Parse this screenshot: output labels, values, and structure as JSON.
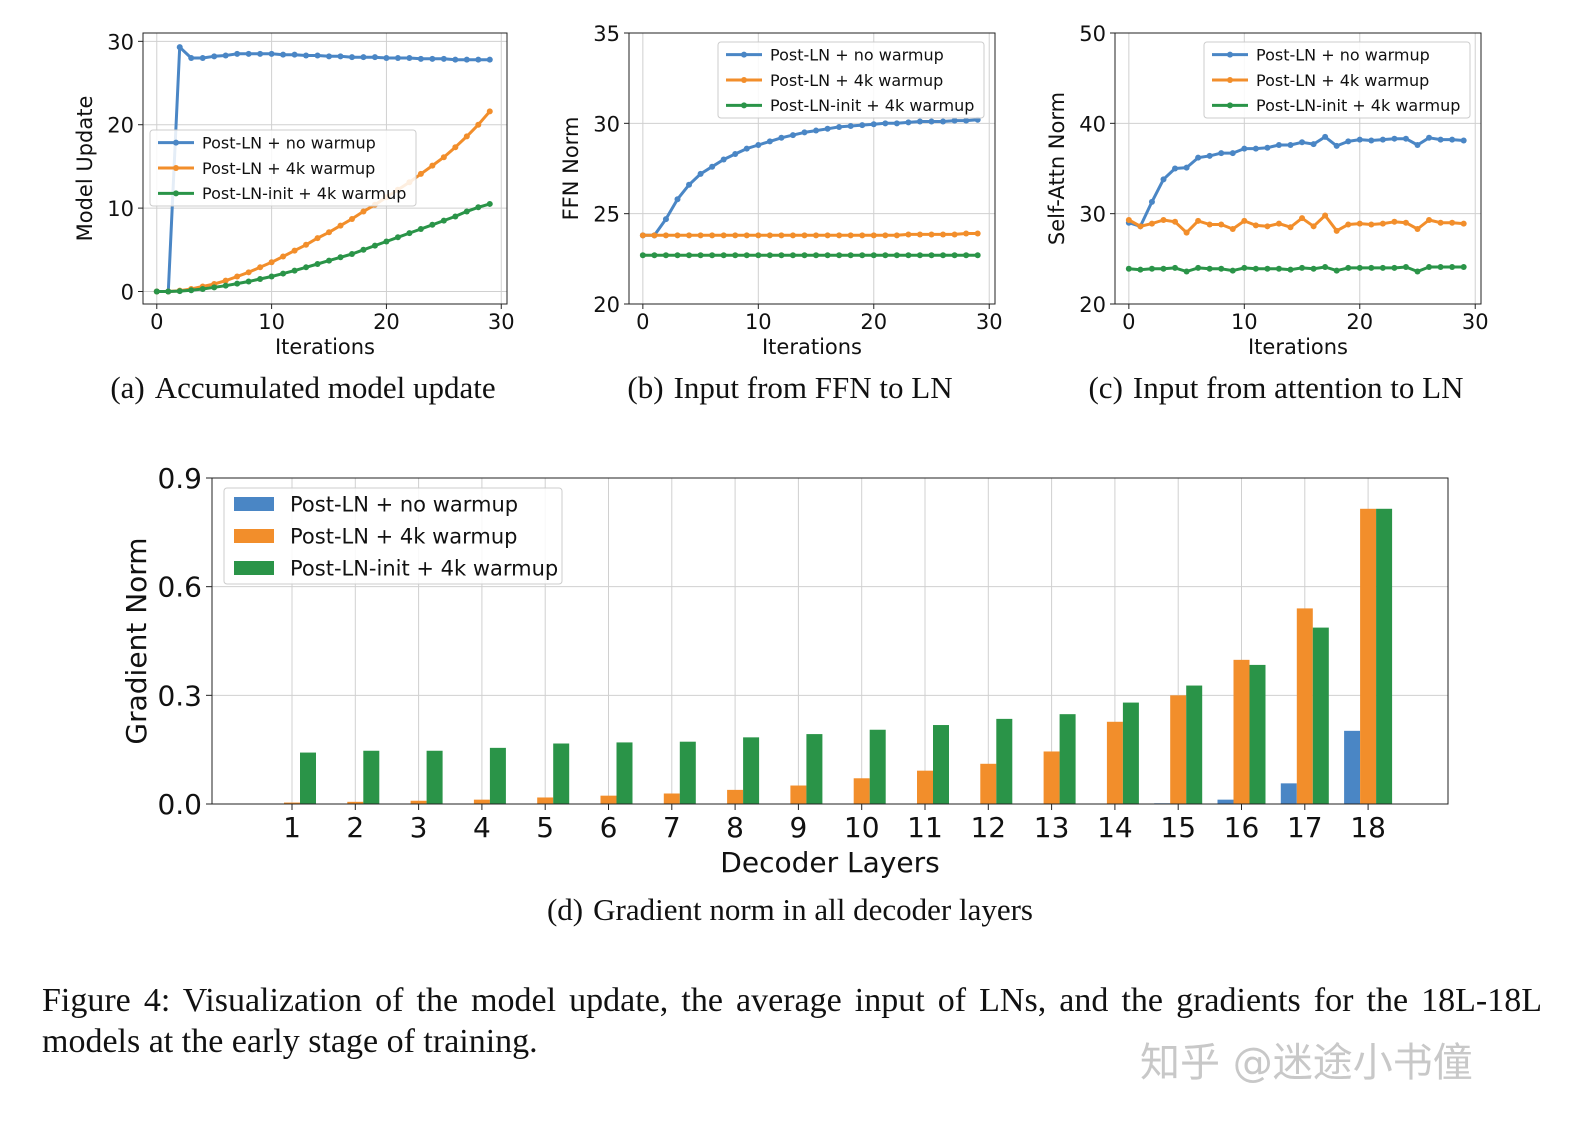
{
  "colors": {
    "blue": "#4a86c5",
    "orange": "#f28e2b",
    "green": "#2a9448",
    "grid": "#d0d0d0",
    "axis": "#222222"
  },
  "chart_data": [
    {
      "type": "line",
      "id": "a",
      "caption_tag": "(a)",
      "caption": "Accumulated model update",
      "xlabel": "Iterations",
      "ylabel": "Model Update",
      "xlim": [
        -1.2,
        30.5
      ],
      "ylim": [
        -1.5,
        31
      ],
      "xticks": [
        0,
        10,
        20,
        30
      ],
      "yticks": [
        0,
        10,
        20,
        30
      ],
      "legend_position": "center-left",
      "series": [
        {
          "name": "Post-LN + no warmup",
          "color": "blue",
          "values": [
            0,
            0,
            29.3,
            28,
            28,
            28.2,
            28.3,
            28.5,
            28.5,
            28.5,
            28.5,
            28.4,
            28.4,
            28.3,
            28.3,
            28.2,
            28.2,
            28.1,
            28.1,
            28.1,
            28,
            28,
            28,
            27.9,
            27.9,
            27.9,
            27.8,
            27.8,
            27.8,
            27.8
          ]
        },
        {
          "name": "Post-LN + 4k warmup",
          "color": "orange",
          "values": [
            0,
            0,
            0.1,
            0.3,
            0.6,
            0.9,
            1.3,
            1.8,
            2.3,
            2.9,
            3.5,
            4.2,
            4.9,
            5.6,
            6.4,
            7.1,
            7.9,
            8.7,
            9.6,
            10.4,
            11.3,
            12.2,
            13.1,
            14.1,
            15.1,
            16.1,
            17.3,
            18.6,
            20,
            21.6
          ]
        },
        {
          "name": "Post-LN-init + 4k warmup",
          "color": "green",
          "values": [
            0,
            0,
            0.05,
            0.15,
            0.3,
            0.5,
            0.7,
            0.95,
            1.2,
            1.5,
            1.8,
            2.15,
            2.5,
            2.9,
            3.3,
            3.7,
            4.1,
            4.5,
            5.0,
            5.5,
            6.0,
            6.5,
            7.0,
            7.5,
            8.0,
            8.5,
            9.0,
            9.6,
            10.1,
            10.5
          ]
        }
      ]
    },
    {
      "type": "line",
      "id": "b",
      "caption_tag": "(b)",
      "caption": "Input from FFN to LN",
      "xlabel": "Iterations",
      "ylabel": "FFN Norm",
      "xlim": [
        -1.2,
        30.5
      ],
      "ylim": [
        20,
        35
      ],
      "xticks": [
        0,
        10,
        20,
        30
      ],
      "yticks": [
        20,
        25,
        30,
        35
      ],
      "legend_position": "upper-right",
      "series": [
        {
          "name": "Post-LN + no warmup",
          "color": "blue",
          "values": [
            23.8,
            23.8,
            24.7,
            25.8,
            26.6,
            27.2,
            27.6,
            28,
            28.3,
            28.6,
            28.8,
            29,
            29.2,
            29.35,
            29.5,
            29.6,
            29.7,
            29.8,
            29.85,
            29.9,
            29.95,
            30,
            30,
            30.05,
            30.1,
            30.1,
            30.1,
            30.15,
            30.15,
            30.2
          ]
        },
        {
          "name": "Post-LN + 4k warmup",
          "color": "orange",
          "values": [
            23.8,
            23.8,
            23.8,
            23.8,
            23.8,
            23.8,
            23.8,
            23.8,
            23.8,
            23.8,
            23.8,
            23.8,
            23.8,
            23.8,
            23.8,
            23.8,
            23.8,
            23.8,
            23.8,
            23.8,
            23.8,
            23.8,
            23.8,
            23.85,
            23.85,
            23.85,
            23.85,
            23.85,
            23.9,
            23.9
          ]
        },
        {
          "name": "Post-LN-init + 4k warmup",
          "color": "green",
          "values": [
            22.7,
            22.7,
            22.7,
            22.7,
            22.7,
            22.7,
            22.7,
            22.7,
            22.7,
            22.7,
            22.7,
            22.7,
            22.7,
            22.7,
            22.7,
            22.7,
            22.7,
            22.7,
            22.7,
            22.7,
            22.7,
            22.7,
            22.7,
            22.7,
            22.7,
            22.7,
            22.7,
            22.7,
            22.7,
            22.7
          ]
        }
      ]
    },
    {
      "type": "line",
      "id": "c",
      "caption_tag": "(c)",
      "caption": "Input from attention to LN",
      "xlabel": "Iterations",
      "ylabel": "Self-Attn Norm",
      "xlim": [
        -1.2,
        30.5
      ],
      "ylim": [
        20,
        50
      ],
      "xticks": [
        0,
        10,
        20,
        30
      ],
      "yticks": [
        20,
        30,
        40,
        50
      ],
      "legend_position": "upper-right",
      "series": [
        {
          "name": "Post-LN + no warmup",
          "color": "blue",
          "values": [
            29,
            28.6,
            31.3,
            33.8,
            35,
            35.1,
            36.2,
            36.4,
            36.7,
            36.7,
            37.2,
            37.2,
            37.3,
            37.6,
            37.6,
            37.9,
            37.7,
            38.5,
            37.5,
            38,
            38.2,
            38.1,
            38.2,
            38.3,
            38.3,
            37.6,
            38.4,
            38.2,
            38.2,
            38.1
          ]
        },
        {
          "name": "Post-LN + 4k warmup",
          "color": "orange",
          "values": [
            29.3,
            28.6,
            28.9,
            29.3,
            29.1,
            27.9,
            29.2,
            28.8,
            28.8,
            28.3,
            29.2,
            28.7,
            28.6,
            28.9,
            28.5,
            29.5,
            28.6,
            29.8,
            28.1,
            28.8,
            28.9,
            28.8,
            28.9,
            29.1,
            29,
            28.3,
            29.3,
            29,
            29,
            28.9
          ]
        },
        {
          "name": "Post-LN-init + 4k warmup",
          "color": "green",
          "values": [
            23.9,
            23.8,
            23.9,
            23.9,
            24,
            23.6,
            24,
            23.9,
            23.9,
            23.7,
            24,
            23.9,
            23.9,
            23.9,
            23.8,
            24,
            23.9,
            24.1,
            23.7,
            24,
            24,
            24,
            24,
            24,
            24.1,
            23.6,
            24.1,
            24.1,
            24.1,
            24.1
          ]
        }
      ]
    },
    {
      "type": "bar",
      "id": "d",
      "caption_tag": "(d)",
      "caption": "Gradient norm in all decoder layers",
      "xlabel": "Decoder Layers",
      "ylabel": "Gradient Norm",
      "ylim": [
        0,
        0.9
      ],
      "yticks": [
        "0.0",
        "0.3",
        "0.6",
        "0.9"
      ],
      "legend_position": "upper-left",
      "categories": [
        "1",
        "2",
        "3",
        "4",
        "5",
        "6",
        "7",
        "8",
        "9",
        "10",
        "11",
        "12",
        "13",
        "14",
        "15",
        "16",
        "17",
        "18"
      ],
      "series": [
        {
          "name": "Post-LN + no warmup",
          "color": "blue",
          "values": [
            0,
            0,
            0,
            0,
            0,
            0,
            0,
            0,
            0,
            0,
            0,
            0,
            0,
            0,
            0.002,
            0.012,
            0.057,
            0.202
          ]
        },
        {
          "name": "Post-LN + 4k warmup",
          "color": "orange",
          "values": [
            0.004,
            0.006,
            0.009,
            0.012,
            0.018,
            0.023,
            0.029,
            0.039,
            0.051,
            0.071,
            0.092,
            0.111,
            0.145,
            0.227,
            0.3,
            0.398,
            0.54,
            0.815
          ]
        },
        {
          "name": "Post-LN-init + 4k warmup",
          "color": "green",
          "values": [
            0.142,
            0.147,
            0.147,
            0.155,
            0.167,
            0.17,
            0.172,
            0.184,
            0.193,
            0.205,
            0.218,
            0.235,
            0.248,
            0.28,
            0.327,
            0.384,
            0.487,
            0.815
          ]
        }
      ]
    }
  ],
  "figure_caption": "Figure 4: Visualization of the model update, the average input of LNs, and the gradients for the 18L-18L models at the early stage of training.",
  "watermark": "知乎 @迷途小书僮"
}
